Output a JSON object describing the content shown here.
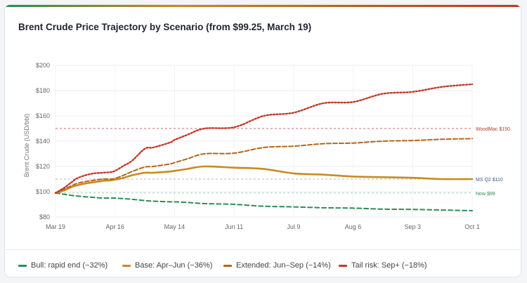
{
  "card": {
    "title": "Brent Crude Price Trajectory by Scenario (from $99.25, March 19)",
    "accent_colors": [
      "#2e8b57",
      "#c98a1f",
      "#b5651d",
      "#c0392b"
    ]
  },
  "chart_data": {
    "type": "line",
    "title": "Brent Crude Price Trajectory by Scenario (from $99.25, March 19)",
    "ylabel": "Brent Crude (USD/bbl)",
    "xlabel": "",
    "ylim": [
      80,
      200
    ],
    "yticks": [
      80,
      100,
      120,
      140,
      160,
      180,
      200
    ],
    "ytick_labels": [
      "$80",
      "$100",
      "$120",
      "$140",
      "$160",
      "$180",
      "$200"
    ],
    "x_tick_labels": [
      "Mar 19",
      "Apr 16",
      "May 14",
      "Jun 11",
      "Jul 9",
      "Aug 6",
      "Sep 3",
      "Oct 1"
    ],
    "x_days": [
      0,
      2,
      4,
      6,
      8,
      10,
      14,
      18,
      22,
      26,
      28,
      32,
      36,
      42,
      46,
      54,
      56,
      62,
      70,
      84,
      98,
      112,
      126,
      140,
      154,
      168,
      182,
      196
    ],
    "grid": true,
    "series": [
      {
        "name": "Bull: rapid end (−32%)",
        "color": "#2e8b57",
        "dash": "6,4",
        "width": 2,
        "values": [
          99,
          98.5,
          98,
          97.5,
          97,
          96.6,
          96,
          95.5,
          95,
          95,
          95,
          94.5,
          94,
          93,
          92.5,
          92,
          92,
          91.5,
          90.6,
          90,
          88.5,
          88,
          87.3,
          87,
          86.2,
          86,
          85.5,
          85
        ]
      },
      {
        "name": "Base: Apr–Jun (−36%)",
        "color": "#c98a1f",
        "dash": "",
        "width": 2.6,
        "values": [
          99,
          100,
          101,
          102.5,
          104,
          105,
          106.5,
          107.5,
          108.5,
          109,
          109.5,
          111,
          113,
          115,
          115,
          116,
          116.5,
          118,
          120,
          119,
          118,
          114.5,
          113.5,
          112,
          111.5,
          111,
          110,
          110
        ]
      },
      {
        "name": "Extended: Jun–Sep (−14%)",
        "color": "#b5651d",
        "dash": "6,3",
        "width": 2,
        "values": [
          99,
          100.5,
          102,
          103.5,
          105,
          106.5,
          108,
          109,
          110,
          110,
          110.5,
          113,
          116,
          119.5,
          120,
          122,
          123,
          126,
          130,
          130.5,
          135,
          136,
          138,
          138.5,
          140,
          140.5,
          141.5,
          142
        ]
      },
      {
        "name": "Tail risk: Sep+ (−18%)",
        "color": "#c0392b",
        "dash": "2,2.5",
        "width": 2.4,
        "values": [
          99,
          101,
          103,
          105.5,
          108,
          110.5,
          113,
          114.5,
          115,
          115.5,
          116.5,
          120.5,
          124.5,
          134,
          135,
          139,
          141,
          145,
          150,
          151,
          160,
          162.5,
          170,
          171,
          177.5,
          179,
          183,
          185
        ]
      }
    ],
    "reference_lines": [
      {
        "label": "WoodMac $150",
        "value": 150,
        "color": "#c0392b",
        "label_color": "#b03a2e"
      },
      {
        "label": "MS Q2 $110",
        "value": 110,
        "color": "#9aa0aa",
        "label_color": "#3b5a8c"
      },
      {
        "label": "Now $99",
        "value": 99,
        "color": "#7fc8a9",
        "label_color": "#2e8b57"
      }
    ],
    "legend_position": "bottom"
  }
}
